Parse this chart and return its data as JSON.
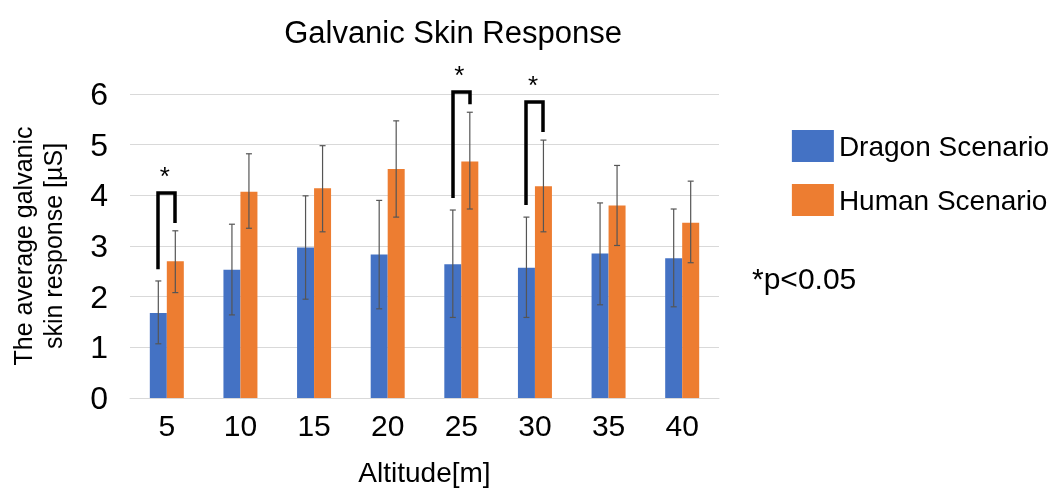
{
  "chart_data": {
    "type": "bar",
    "title": "Galvanic Skin Response",
    "xlabel": "Altitude[m]",
    "ylabel": "The average galvanic skin response [µS]",
    "categories": [
      "5",
      "10",
      "15",
      "20",
      "25",
      "30",
      "35",
      "40"
    ],
    "series": [
      {
        "name": "Dragon Scenario",
        "color": "#4472c4",
        "values": [
          1.68,
          2.53,
          2.97,
          2.83,
          2.64,
          2.57,
          2.85,
          2.76
        ],
        "errors": [
          [
            1.07,
            2.31
          ],
          [
            1.64,
            3.43
          ],
          [
            1.95,
            3.99
          ],
          [
            1.76,
            3.9
          ],
          [
            1.59,
            3.71
          ],
          [
            1.59,
            3.57
          ],
          [
            1.84,
            3.85
          ],
          [
            1.8,
            3.73
          ]
        ]
      },
      {
        "name": "Human Scenario",
        "color": "#ed7d31",
        "values": [
          2.7,
          4.07,
          4.14,
          4.52,
          4.67,
          4.18,
          3.8,
          3.46
        ],
        "errors": [
          [
            2.08,
            3.3
          ],
          [
            3.35,
            4.82
          ],
          [
            3.28,
            4.98
          ],
          [
            3.57,
            5.47
          ],
          [
            3.73,
            5.64
          ],
          [
            3.28,
            5.09
          ],
          [
            3.01,
            4.59
          ],
          [
            2.67,
            4.28
          ]
        ]
      }
    ],
    "ylim": [
      0,
      6
    ],
    "yticks": [
      0,
      1,
      2,
      3,
      4,
      5,
      6
    ],
    "grid": "y",
    "legend": "right",
    "annotations": [
      "*",
      "*",
      "*",
      "*p<0.05"
    ]
  }
}
